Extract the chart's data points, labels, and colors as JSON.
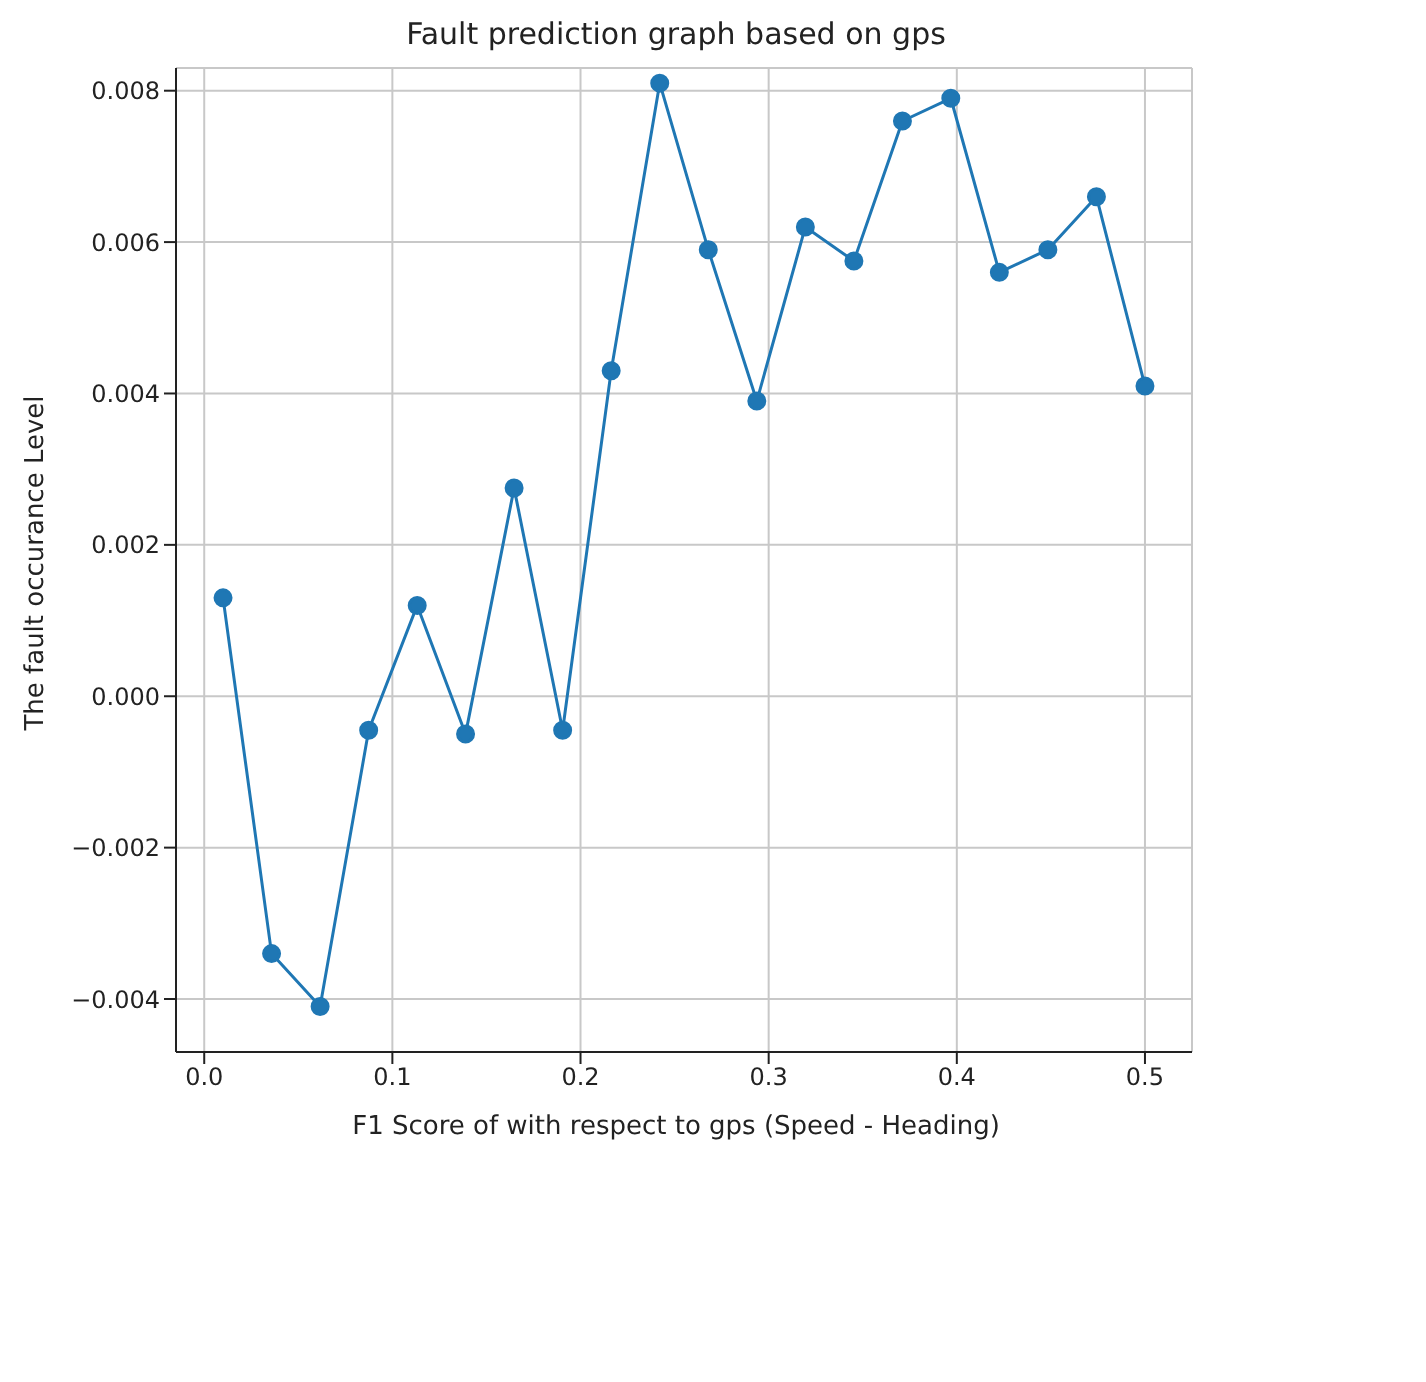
{
  "chart_data": {
    "type": "line",
    "title": "Fault prediction graph based on gps",
    "xlabel": "F1 Score of with respect to gps (Speed - Heading)",
    "ylabel": "The fault occurance Level",
    "x": [
      0.01,
      0.0358,
      0.0616,
      0.0874,
      0.1132,
      0.1389,
      0.1647,
      0.1905,
      0.2163,
      0.2421,
      0.2679,
      0.2937,
      0.3195,
      0.3453,
      0.3711,
      0.3968,
      0.4226,
      0.4484,
      0.4742,
      0.5
    ],
    "series": [
      {
        "color": "#1f77b4",
        "values": [
          0.0013,
          -0.0034,
          -0.0041,
          -0.00045,
          0.0012,
          -0.0005,
          0.00275,
          -0.00045,
          0.0043,
          0.0081,
          0.0059,
          0.0039,
          0.0062,
          0.00575,
          0.0076,
          0.0079,
          0.0056,
          0.0059,
          0.0066,
          0.0041
        ]
      }
    ],
    "xlim": [
      -0.015,
      0.525
    ],
    "xticks": [
      {
        "value": 0,
        "label": "0.0"
      },
      0.1,
      0.2,
      0.3,
      0.4,
      0.5
    ],
    "ylim": [
      -0.0047,
      0.0083
    ],
    "yticks": [
      {
        "value": -0.004,
        "label": "−0.004"
      },
      {
        "value": -0.002,
        "label": "−0.002"
      },
      {
        "value": 0,
        "label": "0.000"
      },
      0.002,
      0.004,
      0.006,
      0.008
    ],
    "grid": true,
    "marker": "circle",
    "line_style": "solid"
  }
}
